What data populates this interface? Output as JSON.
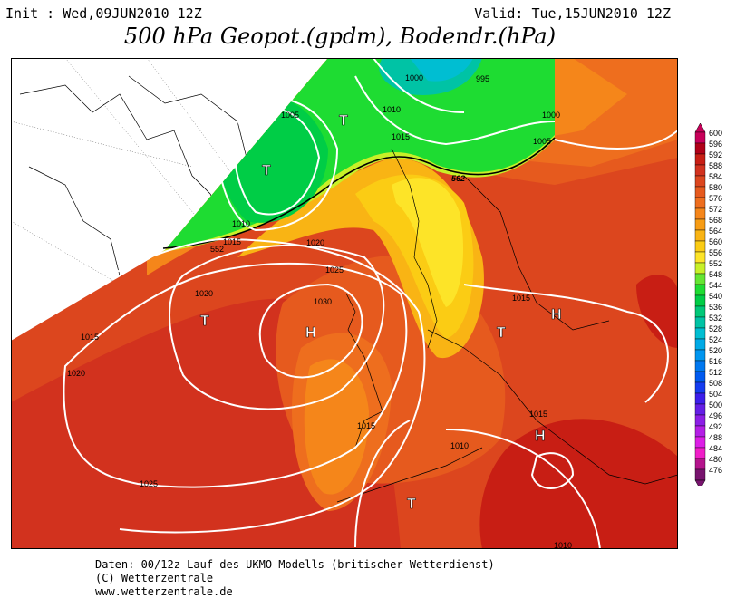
{
  "header": {
    "init": "Init : Wed,09JUN2010 12Z",
    "valid": "Valid: Tue,15JUN2010 12Z",
    "title": "500 hPa Geopot.(gpdm), Bodendr.(hPa)"
  },
  "footer": {
    "line1": "Daten: 00/12z-Lauf des UKMO-Modells (britischer Wetterdienst)",
    "line2": "(C) Wetterzentrale",
    "line3": "www.wetterzentrale.de"
  },
  "legend": {
    "levels": [
      "600",
      "596",
      "592",
      "588",
      "584",
      "580",
      "576",
      "572",
      "568",
      "564",
      "560",
      "556",
      "552",
      "548",
      "544",
      "540",
      "536",
      "532",
      "528",
      "524",
      "520",
      "516",
      "512",
      "508",
      "504",
      "500",
      "496",
      "492",
      "488",
      "484",
      "480",
      "476"
    ],
    "colors": [
      "#c8005a",
      "#b00018",
      "#c81e14",
      "#d2321e",
      "#dc461e",
      "#e65a1e",
      "#ee6e1e",
      "#f5861a",
      "#f79c14",
      "#f9b414",
      "#fbcc14",
      "#fde428",
      "#c8f028",
      "#64e632",
      "#1edc32",
      "#00cd46",
      "#00c878",
      "#00c3a5",
      "#00bed2",
      "#00aae6",
      "#0096f0",
      "#0078f0",
      "#005af0",
      "#143cf0",
      "#3c1eeb",
      "#641ee6",
      "#8c1ee6",
      "#b41ee6",
      "#dc1ee6",
      "#f01ec8",
      "#b4148c",
      "#78146e"
    ]
  },
  "map": {
    "contour_labels": [
      "1000",
      "995",
      "1005",
      "1010",
      "1015",
      "1000",
      "1005",
      "1010",
      "1015",
      "552",
      "552",
      "1020",
      "1025",
      "1030",
      "1020",
      "1015",
      "1020",
      "1025",
      "1015",
      "1015",
      "1010",
      "1015",
      "1010",
      "1005",
      "1000",
      "562"
    ],
    "pressure_centers": [
      "T",
      "T",
      "T",
      "H",
      "H",
      "T",
      "H",
      "H",
      "T"
    ]
  }
}
